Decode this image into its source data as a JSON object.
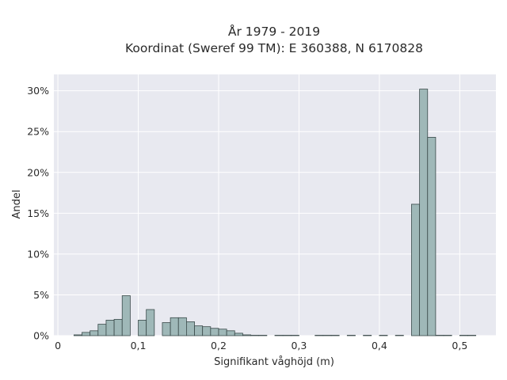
{
  "chart_data": {
    "type": "bar",
    "title_line1": "År 1979 - 2019",
    "title_line2": "Koordinat (Sweref 99 TM): E 360388, N 6170828",
    "xlabel": "Signifikant våghöjd (m)",
    "ylabel": "Andel",
    "xlim": [
      -0.005,
      0.545
    ],
    "ylim": [
      0,
      0.32
    ],
    "grid": true,
    "bin_width": 0.01,
    "x_ticks": [
      {
        "value": 0,
        "label": "0"
      },
      {
        "value": 0.1,
        "label": "0,1"
      },
      {
        "value": 0.2,
        "label": "0,2"
      },
      {
        "value": 0.3,
        "label": "0,3"
      },
      {
        "value": 0.4,
        "label": "0,4"
      },
      {
        "value": 0.5,
        "label": "0,5"
      }
    ],
    "y_ticks": [
      {
        "value": 0,
        "label": "0%"
      },
      {
        "value": 0.05,
        "label": "5%"
      },
      {
        "value": 0.1,
        "label": "10%"
      },
      {
        "value": 0.15,
        "label": "15%"
      },
      {
        "value": 0.2,
        "label": "20%"
      },
      {
        "value": 0.25,
        "label": "25%"
      },
      {
        "value": 0.3,
        "label": "30%"
      }
    ],
    "bins": [
      {
        "x0": 0.02,
        "value": 0.001
      },
      {
        "x0": 0.03,
        "value": 0.004
      },
      {
        "x0": 0.04,
        "value": 0.006
      },
      {
        "x0": 0.05,
        "value": 0.014
      },
      {
        "x0": 0.06,
        "value": 0.019
      },
      {
        "x0": 0.07,
        "value": 0.02
      },
      {
        "x0": 0.08,
        "value": 0.049
      },
      {
        "x0": 0.1,
        "value": 0.019
      },
      {
        "x0": 0.11,
        "value": 0.032
      },
      {
        "x0": 0.13,
        "value": 0.016
      },
      {
        "x0": 0.14,
        "value": 0.022
      },
      {
        "x0": 0.15,
        "value": 0.022
      },
      {
        "x0": 0.16,
        "value": 0.017
      },
      {
        "x0": 0.17,
        "value": 0.012
      },
      {
        "x0": 0.18,
        "value": 0.011
      },
      {
        "x0": 0.19,
        "value": 0.009
      },
      {
        "x0": 0.2,
        "value": 0.008
      },
      {
        "x0": 0.21,
        "value": 0.006
      },
      {
        "x0": 0.22,
        "value": 0.003
      },
      {
        "x0": 0.23,
        "value": 0.001
      },
      {
        "x0": 0.24,
        "value": 0.0005
      },
      {
        "x0": 0.25,
        "value": 0.0005
      },
      {
        "x0": 0.27,
        "value": 0.0005
      },
      {
        "x0": 0.28,
        "value": 0.0005
      },
      {
        "x0": 0.29,
        "value": 0.0005
      },
      {
        "x0": 0.32,
        "value": 0.0005
      },
      {
        "x0": 0.33,
        "value": 0.0005
      },
      {
        "x0": 0.34,
        "value": 0.0005
      },
      {
        "x0": 0.36,
        "value": 0.0005
      },
      {
        "x0": 0.38,
        "value": 0.0005
      },
      {
        "x0": 0.4,
        "value": 0.0005
      },
      {
        "x0": 0.42,
        "value": 0.0005
      },
      {
        "x0": 0.44,
        "value": 0.161
      },
      {
        "x0": 0.45,
        "value": 0.302
      },
      {
        "x0": 0.46,
        "value": 0.243
      },
      {
        "x0": 0.47,
        "value": 0.0005
      },
      {
        "x0": 0.48,
        "value": 0.0005
      },
      {
        "x0": 0.5,
        "value": 0.0005
      },
      {
        "x0": 0.51,
        "value": 0.0005
      }
    ],
    "colors": {
      "plot_background": "#e8e9f0",
      "grid": "#ffffff",
      "bar_fill": "#9fb8b8",
      "bar_stroke": "#3a4a4a"
    }
  }
}
